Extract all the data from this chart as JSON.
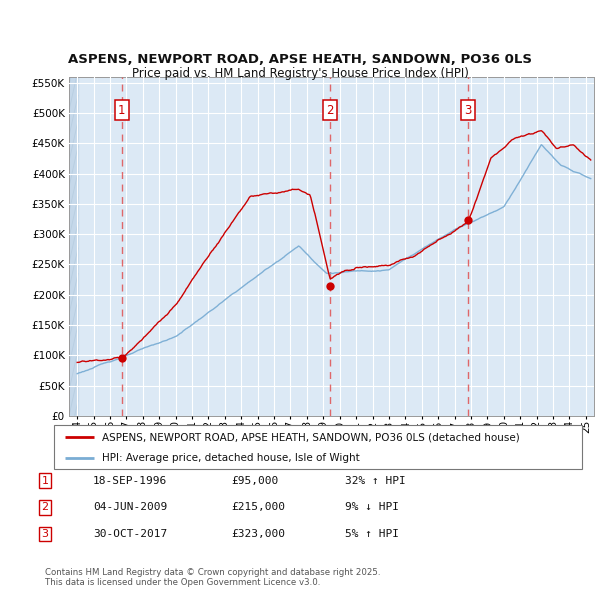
{
  "title1": "ASPENS, NEWPORT ROAD, APSE HEATH, SANDOWN, PO36 0LS",
  "title2": "Price paid vs. HM Land Registry's House Price Index (HPI)",
  "legend_line1": "ASPENS, NEWPORT ROAD, APSE HEATH, SANDOWN, PO36 0LS (detached house)",
  "legend_line2": "HPI: Average price, detached house, Isle of Wight",
  "footnote": "Contains HM Land Registry data © Crown copyright and database right 2025.\nThis data is licensed under the Open Government Licence v3.0.",
  "sale1": {
    "num": 1,
    "date": "18-SEP-1996",
    "price": 95000,
    "hpi_diff": "32% ↑ HPI",
    "x": 1996.72
  },
  "sale2": {
    "num": 2,
    "date": "04-JUN-2009",
    "price": 215000,
    "hpi_diff": "9% ↓ HPI",
    "x": 2009.42
  },
  "sale3": {
    "num": 3,
    "date": "30-OCT-2017",
    "price": 323000,
    "hpi_diff": "5% ↑ HPI",
    "x": 2017.83
  },
  "sold_color": "#cc0000",
  "hpi_color": "#7aadd4",
  "background_color": "#dce9f5",
  "grid_color": "#ffffff",
  "vline_color": "#e05050",
  "ylim": [
    0,
    560000
  ],
  "yticks": [
    0,
    50000,
    100000,
    150000,
    200000,
    250000,
    300000,
    350000,
    400000,
    450000,
    500000,
    550000
  ],
  "xlim": [
    1993.5,
    2025.5
  ],
  "xticks": [
    1994,
    1995,
    1996,
    1997,
    1998,
    1999,
    2000,
    2001,
    2002,
    2003,
    2004,
    2005,
    2006,
    2007,
    2008,
    2009,
    2010,
    2011,
    2012,
    2013,
    2014,
    2015,
    2016,
    2017,
    2018,
    2019,
    2020,
    2021,
    2022,
    2023,
    2024,
    2025
  ]
}
